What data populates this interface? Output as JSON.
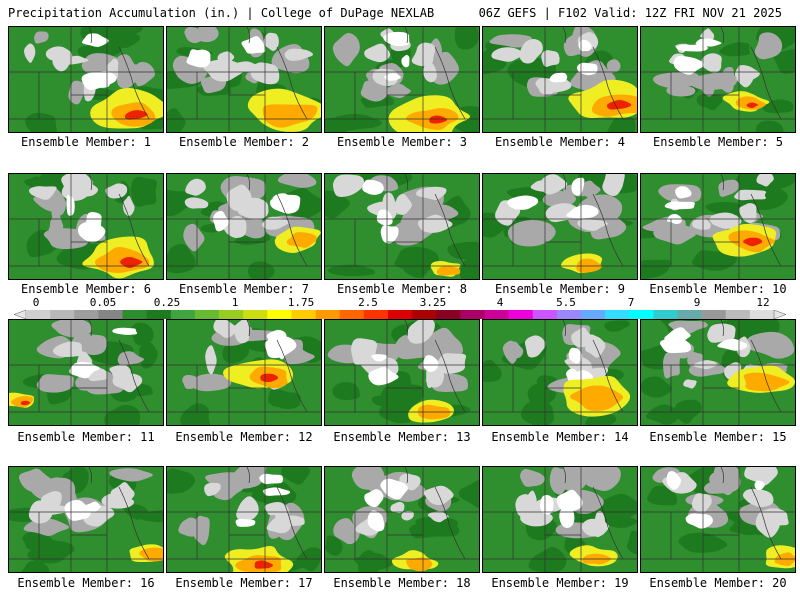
{
  "header": {
    "title": "Precipitation Accumulation (in.) | College of DuPage NEXLAB",
    "run_info": "06Z GEFS | F102 Valid: 12Z FRI NOV 21 2025"
  },
  "colorbar": {
    "tick_labels": [
      "0",
      "0.05",
      "0.25",
      "1",
      "1.75",
      "2.5",
      "3.25",
      "4",
      "5.5",
      "7",
      "9",
      "12"
    ],
    "colors": [
      "#cfcfcf",
      "#b8b8b8",
      "#9e9e9e",
      "#858585",
      "#2e8b2e",
      "#1f7a1f",
      "#3fa53f",
      "#66bb33",
      "#99cc22",
      "#ccdd11",
      "#ffff00",
      "#ffcc00",
      "#ff9900",
      "#ff6600",
      "#ff3300",
      "#dd0000",
      "#aa0000",
      "#880022",
      "#aa0066",
      "#cc0099",
      "#ee00dd",
      "#cc55ff",
      "#9988ff",
      "#66aaff",
      "#33ddff",
      "#00ffff",
      "#33cccc",
      "#66aaaa",
      "#999999",
      "#bbbbbb",
      "#dddddd"
    ]
  },
  "panels": [
    {
      "label": "Ensemble Member: 1"
    },
    {
      "label": "Ensemble Member: 2"
    },
    {
      "label": "Ensemble Member: 3"
    },
    {
      "label": "Ensemble Member: 4"
    },
    {
      "label": "Ensemble Member: 5"
    },
    {
      "label": "Ensemble Member: 6"
    },
    {
      "label": "Ensemble Member: 7"
    },
    {
      "label": "Ensemble Member: 8"
    },
    {
      "label": "Ensemble Member: 9"
    },
    {
      "label": "Ensemble Member: 10"
    },
    {
      "label": "Ensemble Member: 11"
    },
    {
      "label": "Ensemble Member: 12"
    },
    {
      "label": "Ensemble Member: 13"
    },
    {
      "label": "Ensemble Member: 14"
    },
    {
      "label": "Ensemble Member: 15"
    },
    {
      "label": "Ensemble Member: 16"
    },
    {
      "label": "Ensemble Member: 17"
    },
    {
      "label": "Ensemble Member: 18"
    },
    {
      "label": "Ensemble Member: 19"
    },
    {
      "label": "Ensemble Member: 20"
    }
  ],
  "palette": {
    "dry": "#ffffff",
    "trace": "#d8d8d8",
    "light": "#a9a9a9",
    "green": "#2f8f2f",
    "darkgreen": "#1e7a1e",
    "yellow": "#eeee22",
    "orange": "#ffaa00",
    "red": "#ee2200"
  }
}
